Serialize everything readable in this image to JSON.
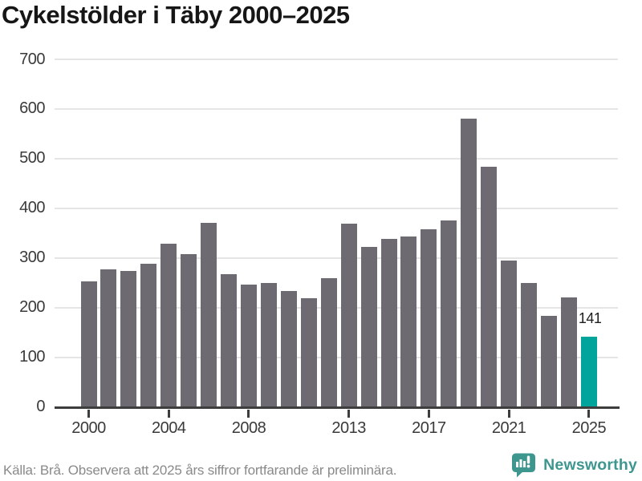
{
  "title": "Cykelstölder i Täby 2000–2025",
  "footer": {
    "source_note": "Källa: Brå. Observera att 2025 års siffror fortfarande är preliminära."
  },
  "branding": {
    "name": "Newsworthy",
    "icon": "bar-chart-speech-bubble-icon",
    "color": "#3E978F"
  },
  "chart_data": {
    "type": "bar",
    "title": "Cykelstölder i Täby 2000–2025",
    "xlabel": "",
    "ylabel": "",
    "ylim": [
      0,
      700
    ],
    "y_ticks": [
      0,
      100,
      200,
      300,
      400,
      500,
      600,
      700
    ],
    "grid": true,
    "legend": "none",
    "categories": [
      2000,
      2001,
      2002,
      2003,
      2004,
      2005,
      2006,
      2007,
      2008,
      2009,
      2010,
      2011,
      2012,
      2013,
      2014,
      2015,
      2016,
      2017,
      2018,
      2019,
      2020,
      2021,
      2022,
      2023,
      2024,
      2025
    ],
    "values": [
      253,
      277,
      274,
      289,
      328,
      307,
      371,
      267,
      246,
      250,
      234,
      218,
      259,
      369,
      322,
      339,
      343,
      358,
      375,
      581,
      484,
      294,
      250,
      184,
      220,
      141
    ],
    "x_tick_labels": [
      "2000",
      "2004",
      "2008",
      "2013",
      "2017",
      "2021",
      "2025"
    ],
    "bar_color": "#6D6A71",
    "gridline_color": "#E5E5E5",
    "axis_color": "#3D3D3D",
    "highlight": {
      "year": 2025,
      "value": 141,
      "label": "141",
      "color": "#00A49A"
    }
  }
}
